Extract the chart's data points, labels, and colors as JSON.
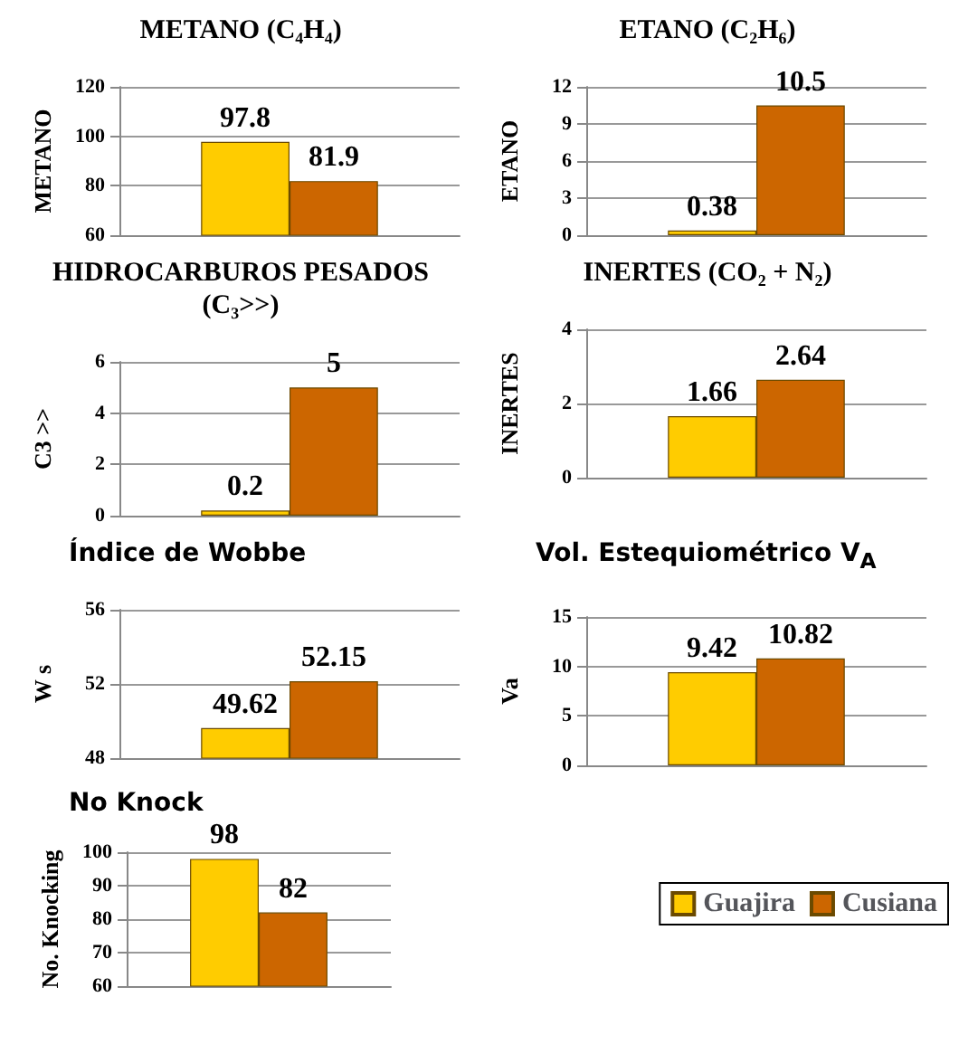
{
  "chart_data": [
    {
      "type": "bar",
      "title": "METANO (C₄H₄)",
      "ylabel": "METANO",
      "categories": [
        null
      ],
      "ylim": [
        60,
        120
      ],
      "yticks": [
        60,
        80,
        100,
        120
      ],
      "grid": "y",
      "data_labels": true,
      "series": [
        {
          "color": "#ffcc00",
          "values": [
            97.8
          ]
        },
        {
          "color": "#cc6600",
          "values": [
            81.9
          ]
        }
      ]
    },
    {
      "type": "bar",
      "title": "ETANO (C₂H₆)",
      "ylabel": "ETANO",
      "categories": [
        null
      ],
      "ylim": [
        0,
        12
      ],
      "yticks": [
        0,
        3,
        6,
        9,
        12
      ],
      "grid": "y",
      "data_labels": true,
      "series": [
        {
          "color": "#ffcc00",
          "values": [
            0.38
          ]
        },
        {
          "color": "#cc6600",
          "values": [
            10.5
          ]
        }
      ]
    },
    {
      "type": "bar",
      "title": "HIDROCARBUROS PESADOS (C₃>>)",
      "ylabel": "C3 >>",
      "categories": [
        null
      ],
      "ylim": [
        0,
        6
      ],
      "yticks": [
        0,
        2,
        4,
        6
      ],
      "grid": "y",
      "data_labels": true,
      "series": [
        {
          "color": "#ffcc00",
          "values": [
            0.2
          ]
        },
        {
          "color": "#cc6600",
          "values": [
            5
          ]
        }
      ]
    },
    {
      "type": "bar",
      "title": "INERTES (CO₂ + N₂)",
      "ylabel": "INERTES",
      "categories": [
        null
      ],
      "ylim": [
        0,
        4
      ],
      "yticks": [
        0,
        2,
        4
      ],
      "grid": "y",
      "data_labels": true,
      "series": [
        {
          "color": "#ffcc00",
          "values": [
            1.66
          ]
        },
        {
          "color": "#cc6600",
          "values": [
            2.64
          ]
        }
      ]
    },
    {
      "type": "bar",
      "title": "Índice de Wobbe",
      "ylabel": "W s",
      "categories": [
        null
      ],
      "ylim": [
        48,
        56
      ],
      "yticks": [
        48,
        52,
        56
      ],
      "grid": "y",
      "data_labels": true,
      "series": [
        {
          "color": "#ffcc00",
          "values": [
            49.62
          ]
        },
        {
          "color": "#cc6600",
          "values": [
            52.15
          ]
        }
      ]
    },
    {
      "type": "bar",
      "title": "Vol. Estequiométrico V$_{A}$",
      "ylabel": "Va",
      "categories": [
        null
      ],
      "ylim": [
        0,
        15
      ],
      "yticks": [
        0,
        5,
        10,
        15
      ],
      "grid": "y",
      "data_labels": true,
      "series": [
        {
          "color": "#ffcc00",
          "values": [
            9.42
          ]
        },
        {
          "color": "#cc6600",
          "values": [
            10.82
          ]
        }
      ]
    },
    {
      "type": "bar",
      "title": "No Knock",
      "ylabel": "No. Knocking",
      "categories": [
        null
      ],
      "ylim": [
        60,
        100
      ],
      "yticks": [
        60,
        70,
        80,
        90,
        100
      ],
      "grid": "y",
      "data_labels": true,
      "legend": "right",
      "series": [
        {
          "name": "Guajira",
          "color": "#ffcc00",
          "values": [
            98
          ]
        },
        {
          "name": "Cusiana",
          "color": "#cc6600",
          "values": [
            82
          ]
        }
      ]
    }
  ]
}
